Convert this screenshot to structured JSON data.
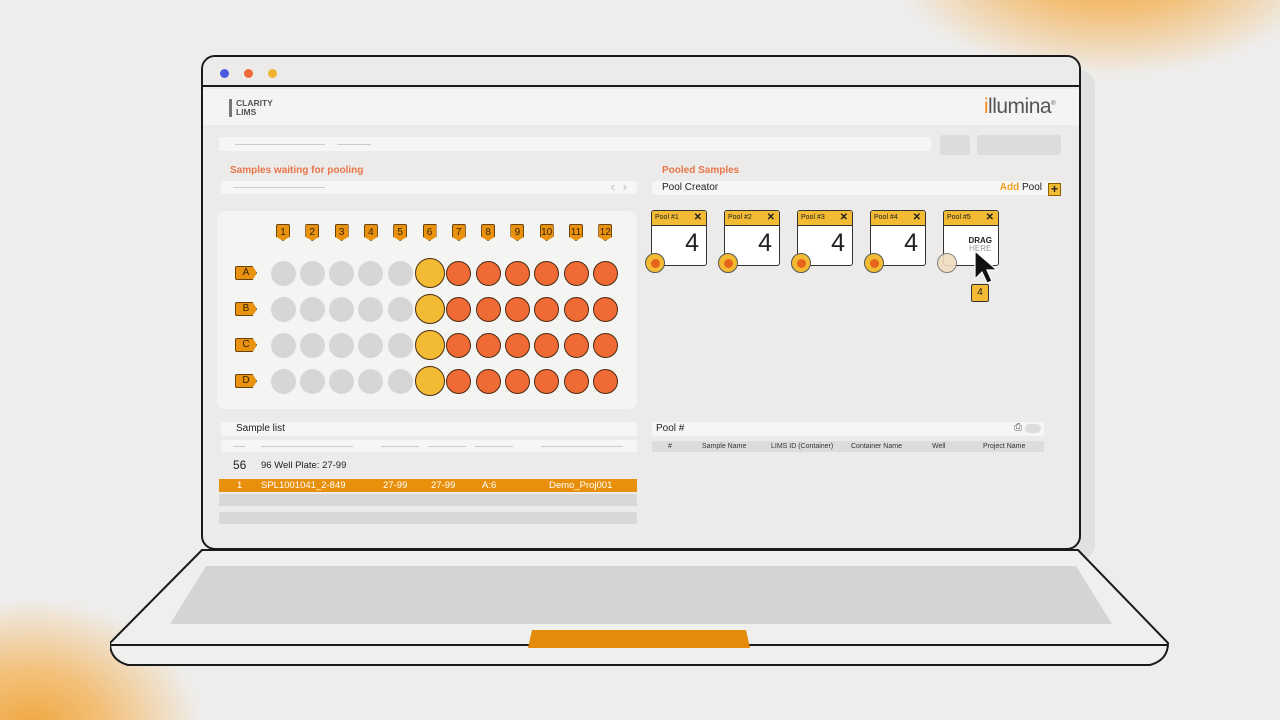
{
  "window": {
    "controls": [
      "#4a5be0",
      "#ee6a3a",
      "#f0b431"
    ]
  },
  "header": {
    "logo_line1": "CLARITY",
    "logo_line2": "LIMS",
    "brand_i": "i",
    "brand_rest": "llumina",
    "brand_mark": "®"
  },
  "left": {
    "title": "Samples waiting for pooling",
    "prev": "‹",
    "next": "›"
  },
  "plate": {
    "columns": [
      "1",
      "2",
      "3",
      "4",
      "5",
      "6",
      "7",
      "8",
      "9",
      "10",
      "11",
      "12"
    ],
    "rows": [
      "A",
      "B",
      "C",
      "D"
    ],
    "well_states_by_column": [
      "empty",
      "empty",
      "empty",
      "empty",
      "empty",
      "selected",
      "pooled",
      "pooled",
      "pooled",
      "pooled",
      "pooled",
      "pooled"
    ],
    "colors": {
      "empty": "#d6d6d6",
      "selected": "#f3bb33",
      "pooled": "#f06a35",
      "label": "#e8920f"
    }
  },
  "right": {
    "title": "Pooled Samples",
    "pool_creator": "Pool Creator",
    "add_word": "Add",
    "pool_word": "Pool",
    "add_icon": "+"
  },
  "pools": [
    {
      "name": "Pool #1",
      "count": "4",
      "close": "✕"
    },
    {
      "name": "Pool #2",
      "count": "4",
      "close": "✕"
    },
    {
      "name": "Pool #3",
      "count": "4",
      "close": "✕"
    },
    {
      "name": "Pool #4",
      "count": "4",
      "close": "✕"
    },
    {
      "name": "Pool #5",
      "drag1": "DRAG",
      "drag2": "HERE",
      "close": "✕"
    }
  ],
  "drag_badge": "4",
  "sample_list": {
    "title": "Sample list",
    "count": "56",
    "plate": "96 Well Plate: 27-99",
    "selected_row": {
      "index": "1",
      "sample": "SPL1001041_2-849",
      "lims": "27-99",
      "container": "27-99",
      "well": "A:6",
      "project": "Demo_Proj001"
    }
  },
  "pool_table": {
    "title": "Pool #",
    "columns": [
      "#",
      "Sample Name",
      "LIMS ID (Container)",
      "Container Name",
      "Well",
      "Project Name"
    ]
  }
}
